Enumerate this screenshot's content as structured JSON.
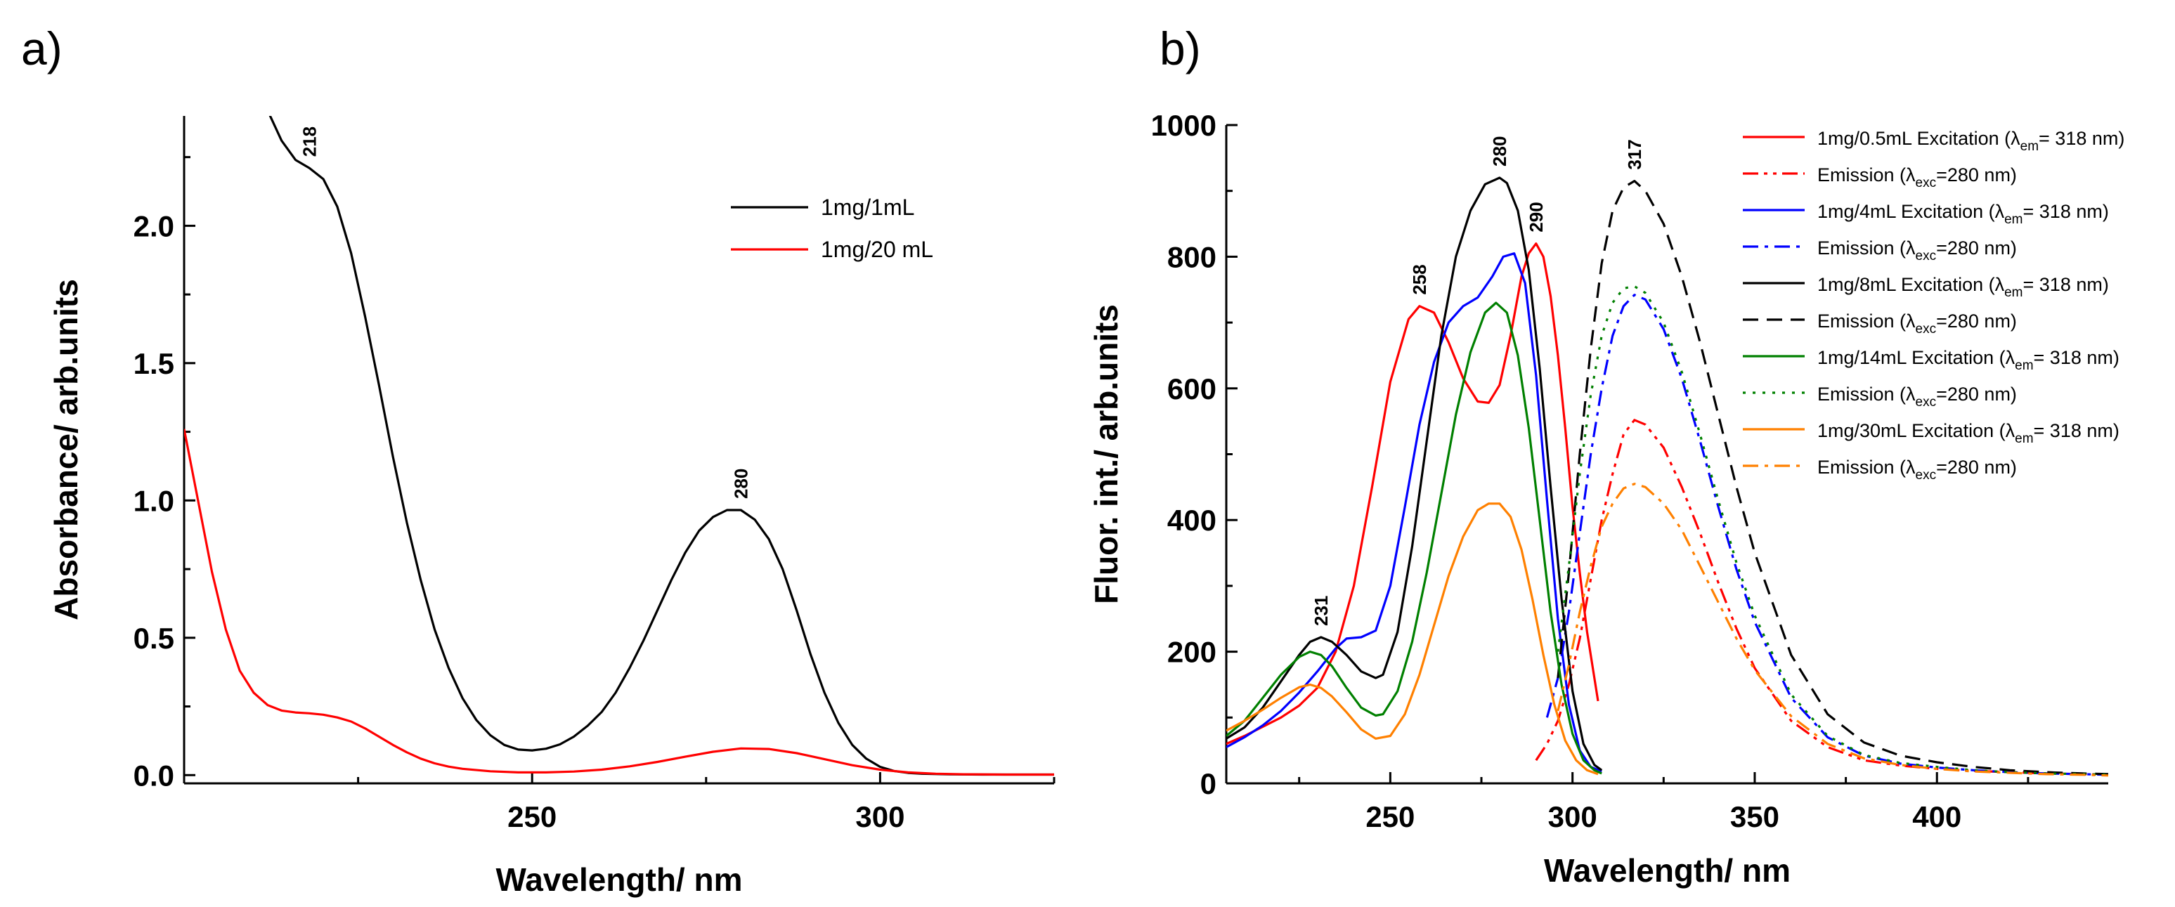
{
  "figure": {
    "panel_a_label": "a)",
    "panel_b_label": "b)"
  },
  "chart_data": [
    {
      "type": "line",
      "panel": "a",
      "title": "",
      "xlabel": "Wavelength/ nm",
      "ylabel": "Absorbance/ arb.units",
      "xlim": [
        200,
        325
      ],
      "ylim": [
        -0.03,
        2.4
      ],
      "xticks": [
        250,
        300
      ],
      "yticks": [
        0.0,
        0.5,
        1.0,
        1.5,
        2.0
      ],
      "ytick_labels": [
        "0.0",
        "0.5",
        "1.0",
        "1.5",
        "2.0"
      ],
      "grid": false,
      "legend_position": "top-right",
      "series": [
        {
          "name": "1mg/1mL",
          "color": "#000000",
          "dash": "solid",
          "x": [
            212,
            214,
            216,
            218,
            220,
            222,
            224,
            226,
            228,
            230,
            232,
            234,
            236,
            238,
            240,
            242,
            244,
            246,
            248,
            250,
            252,
            254,
            256,
            258,
            260,
            262,
            264,
            266,
            268,
            270,
            272,
            274,
            276,
            278,
            280,
            282,
            284,
            286,
            288,
            290,
            292,
            294,
            296,
            298,
            300,
            302,
            304,
            306,
            310,
            315,
            320,
            325
          ],
          "y": [
            2.42,
            2.31,
            2.24,
            2.21,
            2.17,
            2.07,
            1.9,
            1.67,
            1.42,
            1.16,
            0.92,
            0.71,
            0.53,
            0.39,
            0.28,
            0.2,
            0.145,
            0.11,
            0.093,
            0.09,
            0.096,
            0.112,
            0.14,
            0.18,
            0.23,
            0.3,
            0.39,
            0.49,
            0.6,
            0.71,
            0.81,
            0.89,
            0.94,
            0.965,
            0.965,
            0.93,
            0.86,
            0.75,
            0.6,
            0.44,
            0.3,
            0.19,
            0.11,
            0.06,
            0.03,
            0.015,
            0.008,
            0.005,
            0.003,
            0.002,
            0.002,
            0.002
          ]
        },
        {
          "name": "1mg/20 mL",
          "color": "#ff0000",
          "dash": "solid",
          "x": [
            200,
            202,
            204,
            206,
            208,
            210,
            212,
            214,
            216,
            218,
            220,
            222,
            224,
            226,
            228,
            230,
            232,
            234,
            236,
            238,
            240,
            244,
            248,
            252,
            256,
            260,
            264,
            268,
            272,
            276,
            280,
            284,
            288,
            292,
            296,
            300,
            304,
            308,
            312,
            318,
            325
          ],
          "y": [
            1.26,
            1.0,
            0.74,
            0.53,
            0.38,
            0.3,
            0.255,
            0.235,
            0.228,
            0.225,
            0.22,
            0.21,
            0.195,
            0.17,
            0.14,
            0.11,
            0.083,
            0.06,
            0.043,
            0.031,
            0.023,
            0.014,
            0.01,
            0.01,
            0.013,
            0.02,
            0.032,
            0.048,
            0.067,
            0.085,
            0.097,
            0.095,
            0.08,
            0.058,
            0.036,
            0.02,
            0.01,
            0.005,
            0.003,
            0.002,
            0.002
          ]
        }
      ],
      "annotations": [
        {
          "text": "218",
          "x": 218,
          "y": 2.21
        },
        {
          "text": "280",
          "x": 280,
          "y": 0.965
        }
      ]
    },
    {
      "type": "line",
      "panel": "b",
      "title": "",
      "xlabel": "Wavelength/ nm",
      "ylabel": "Fluor. int./ arb.units",
      "xlim": [
        205,
        447
      ],
      "ylim": [
        0,
        1000
      ],
      "xticks": [
        250,
        300,
        350,
        400
      ],
      "yticks": [
        0,
        200,
        400,
        600,
        800,
        1000
      ],
      "ytick_labels": [
        "0",
        "200",
        "400",
        "600",
        "800",
        "1000"
      ],
      "grid": false,
      "legend_position": "top-right",
      "series": [
        {
          "name": "1mg/0.5mL Excitation (λem= 318 nm)",
          "legend_main": "1mg/0.5mL Excitation (λ",
          "legend_sub": "em",
          "legend_tail": "= 318 nm)",
          "color": "#ff0000",
          "dash": "solid",
          "x": [
            205,
            210,
            215,
            220,
            225,
            230,
            235,
            240,
            245,
            250,
            255,
            258,
            262,
            266,
            270,
            274,
            277,
            280,
            283,
            286,
            288,
            290,
            292,
            294,
            296,
            298,
            300,
            302,
            304,
            306,
            307
          ],
          "y": [
            60,
            72,
            86,
            100,
            118,
            145,
            200,
            300,
            450,
            610,
            705,
            725,
            715,
            670,
            615,
            580,
            578,
            605,
            680,
            770,
            805,
            820,
            800,
            740,
            650,
            540,
            420,
            320,
            230,
            160,
            125
          ]
        },
        {
          "name": "Emission (λexc=280 nm)",
          "legend_main": "Emission (λ",
          "legend_sub": "exc",
          "legend_tail": "=280 nm)",
          "color": "#ff0000",
          "dash": "dashdotdot",
          "x": [
            290,
            293,
            296,
            299,
            302,
            305,
            308,
            311,
            314,
            317,
            320,
            325,
            330,
            335,
            340,
            345,
            350,
            360,
            370,
            380,
            390,
            400,
            410,
            420,
            430,
            440,
            447
          ],
          "y": [
            35,
            60,
            95,
            150,
            220,
            310,
            400,
            470,
            530,
            552,
            545,
            510,
            450,
            380,
            305,
            235,
            175,
            95,
            55,
            35,
            27,
            22,
            19,
            17,
            15,
            14,
            13
          ]
        },
        {
          "name": "1mg/4mL Excitation (λem= 318 nm)",
          "legend_main": "1mg/4mL Excitation (λ",
          "legend_sub": "em",
          "legend_tail": "= 318 nm)",
          "color": "#0000ff",
          "dash": "solid",
          "x": [
            205,
            210,
            215,
            220,
            225,
            230,
            235,
            238,
            242,
            246,
            250,
            254,
            258,
            262,
            266,
            270,
            274,
            278,
            281,
            284,
            287,
            290,
            293,
            296,
            299,
            302,
            305,
            308
          ],
          "y": [
            55,
            70,
            88,
            110,
            138,
            170,
            205,
            220,
            222,
            232,
            300,
            420,
            545,
            640,
            700,
            725,
            738,
            770,
            800,
            805,
            760,
            620,
            430,
            250,
            120,
            50,
            25,
            18
          ]
        },
        {
          "name": "Emission (λexc=280 nm)",
          "legend_main": "Emission (λ",
          "legend_sub": "exc",
          "legend_tail": "=280 nm)",
          "color": "#0000ff",
          "dash": "dashdot",
          "x": [
            293,
            296,
            299,
            302,
            305,
            308,
            311,
            314,
            317,
            320,
            325,
            330,
            335,
            340,
            345,
            350,
            360,
            370,
            380,
            390,
            400,
            410,
            420,
            430,
            440,
            447
          ],
          "y": [
            100,
            160,
            260,
            380,
            500,
            600,
            680,
            725,
            742,
            735,
            690,
            615,
            520,
            420,
            325,
            245,
            130,
            70,
            42,
            30,
            24,
            20,
            17,
            15,
            14,
            13
          ]
        },
        {
          "name": "1mg/8mL Excitation (λem= 318 nm)",
          "legend_main": "1mg/8mL Excitation (λ",
          "legend_sub": "em",
          "legend_tail": "= 318 nm)",
          "color": "#000000",
          "dash": "solid",
          "x": [
            205,
            210,
            215,
            220,
            225,
            228,
            231,
            234,
            238,
            242,
            246,
            248,
            252,
            256,
            260,
            264,
            268,
            272,
            276,
            280,
            282,
            285,
            288,
            291,
            294,
            297,
            300,
            303,
            306,
            308
          ],
          "y": [
            68,
            85,
            115,
            155,
            195,
            215,
            222,
            215,
            195,
            170,
            160,
            165,
            230,
            360,
            520,
            680,
            800,
            870,
            910,
            920,
            912,
            870,
            780,
            630,
            450,
            280,
            140,
            60,
            28,
            20
          ]
        },
        {
          "name": "Emission (λexc=280 nm)",
          "legend_main": "Emission (λ",
          "legend_sub": "exc",
          "legend_tail": "=280 nm)",
          "color": "#000000",
          "dash": "dash",
          "x": [
            296,
            299,
            302,
            305,
            308,
            311,
            314,
            317,
            320,
            325,
            330,
            335,
            340,
            345,
            350,
            360,
            370,
            380,
            390,
            400,
            410,
            420,
            430,
            440,
            447
          ],
          "y": [
            160,
            320,
            500,
            660,
            790,
            870,
            905,
            915,
            900,
            850,
            770,
            670,
            560,
            450,
            350,
            195,
            105,
            62,
            42,
            32,
            25,
            20,
            17,
            15,
            14
          ]
        },
        {
          "name": "1mg/14mL Excitation (λem= 318 nm)",
          "legend_main": "1mg/14mL Excitation (λ",
          "legend_sub": "em",
          "legend_tail": "= 318 nm)",
          "color": "#008000",
          "dash": "solid",
          "x": [
            205,
            210,
            215,
            220,
            225,
            228,
            231,
            234,
            238,
            242,
            246,
            248,
            252,
            256,
            260,
            264,
            268,
            272,
            276,
            279,
            282,
            285,
            288,
            291,
            294,
            297,
            300,
            303,
            306,
            308
          ],
          "y": [
            72,
            95,
            130,
            165,
            192,
            200,
            195,
            178,
            145,
            115,
            103,
            105,
            140,
            215,
            320,
            440,
            560,
            655,
            715,
            730,
            715,
            650,
            540,
            400,
            260,
            150,
            75,
            35,
            20,
            15
          ]
        },
        {
          "name": "Emission (λexc=280 nm)",
          "legend_main": "Emission (λ",
          "legend_sub": "exc",
          "legend_tail": "=280 nm)",
          "color": "#008000",
          "dash": "dot",
          "x": [
            296,
            299,
            302,
            305,
            308,
            311,
            314,
            317,
            320,
            325,
            330,
            335,
            340,
            345,
            350,
            360,
            370,
            380,
            390,
            400,
            410,
            420,
            430,
            440,
            447
          ],
          "y": [
            200,
            330,
            470,
            590,
            680,
            730,
            752,
            755,
            745,
            700,
            625,
            530,
            430,
            335,
            255,
            135,
            72,
            43,
            31,
            25,
            20,
            17,
            15,
            14,
            13
          ]
        },
        {
          "name": "1mg/30mL Excitation (λem= 318 nm)",
          "legend_main": "1mg/30mL Excitation (λ",
          "legend_sub": "em",
          "legend_tail": "= 318 nm)",
          "color": "#ff8000",
          "dash": "solid",
          "x": [
            205,
            210,
            215,
            220,
            225,
            228,
            231,
            234,
            238,
            242,
            246,
            250,
            254,
            258,
            262,
            266,
            270,
            274,
            277,
            280,
            283,
            286,
            289,
            292,
            295,
            298,
            301,
            304,
            307
          ],
          "y": [
            80,
            95,
            112,
            130,
            146,
            150,
            145,
            132,
            108,
            82,
            68,
            72,
            105,
            165,
            240,
            315,
            375,
            415,
            425,
            425,
            405,
            355,
            280,
            195,
            120,
            65,
            35,
            20,
            14
          ]
        },
        {
          "name": "Emission (λexc=280 nm)",
          "legend_main": "Emission (λ",
          "legend_sub": "exc",
          "legend_tail": "=280 nm)",
          "color": "#ff8000",
          "dash": "dashdot",
          "x": [
            296,
            299,
            302,
            305,
            308,
            311,
            314,
            317,
            320,
            325,
            330,
            335,
            340,
            345,
            350,
            360,
            370,
            380,
            390,
            400,
            410,
            420,
            430,
            440,
            447
          ],
          "y": [
            110,
            180,
            260,
            330,
            390,
            425,
            448,
            455,
            450,
            425,
            385,
            330,
            275,
            220,
            172,
            102,
            60,
            38,
            28,
            22,
            18,
            16,
            14,
            13,
            12
          ]
        }
      ],
      "annotations": [
        {
          "text": "231",
          "x": 231,
          "y": 222
        },
        {
          "text": "258",
          "x": 258,
          "y": 725
        },
        {
          "text": "280",
          "x": 280,
          "y": 920
        },
        {
          "text": "290",
          "x": 290,
          "y": 820
        },
        {
          "text": "317",
          "x": 317,
          "y": 915
        }
      ]
    }
  ]
}
